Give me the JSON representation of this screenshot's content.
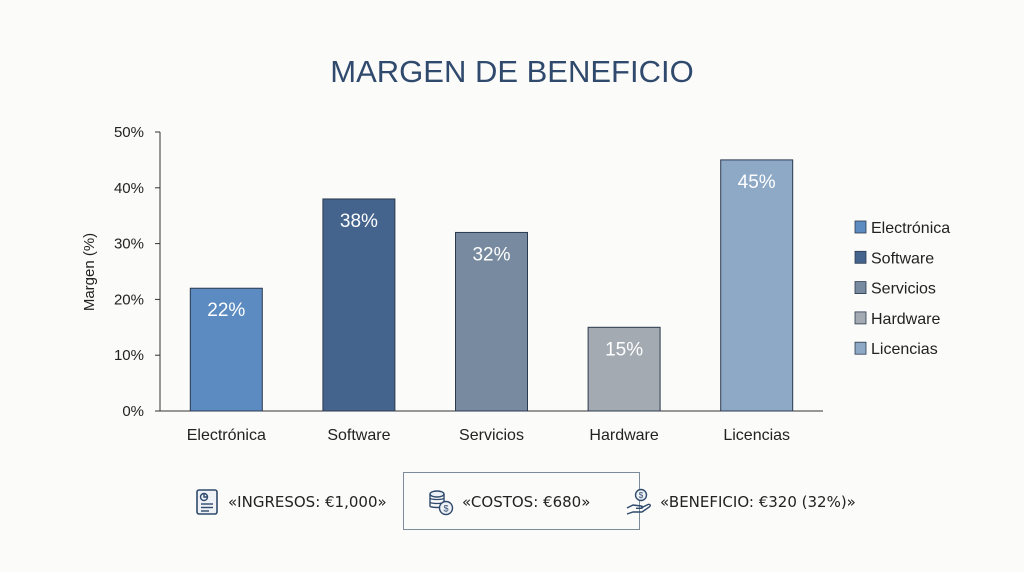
{
  "chart_data": {
    "type": "bar",
    "title": "MARGEN DE BENEFICIO",
    "ylabel": "Margen (%)",
    "xlabel": "",
    "categories": [
      "Electrónica",
      "Software",
      "Servicios",
      "Hardware",
      "Licencias"
    ],
    "values": [
      22,
      38,
      32,
      15,
      45
    ],
    "data_labels": [
      "22%",
      "38%",
      "32%",
      "15%",
      "45%"
    ],
    "colors": [
      "#5b8bc0",
      "#44648d",
      "#788a9f",
      "#a3aab2",
      "#8ea9c6"
    ],
    "ylim": [
      0,
      50
    ],
    "yticks": [
      0,
      10,
      20,
      30,
      40,
      50
    ],
    "ytick_labels": [
      "0%",
      "10%",
      "20%",
      "30%",
      "40%",
      "50%"
    ],
    "grid": false,
    "legend": {
      "position": "right",
      "entries": [
        "Electrónica",
        "Software",
        "Servicios",
        "Hardware",
        "Licencias"
      ]
    }
  },
  "summary": {
    "ingresos": "«INGRESOS: €1,000»",
    "costos": "«COSTOS: €680»",
    "beneficio": "«BENEFICIO: €320 (32%)»",
    "icons": [
      "document-chart-icon",
      "coins-icon",
      "hand-money-icon"
    ]
  }
}
